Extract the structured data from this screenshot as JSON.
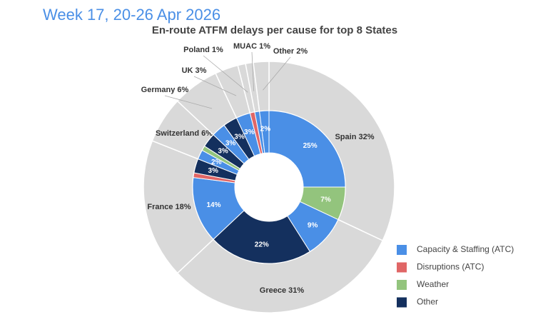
{
  "chart_data": {
    "type": "sunburst",
    "subtitle": "Week 17, 20-26 Apr 2026",
    "title": "En-route ATFM delays per cause for top 8 States",
    "categories": [
      "Spain",
      "Greece",
      "France",
      "Switzerland",
      "Germany",
      "UK",
      "Poland",
      "MUAC",
      "Other"
    ],
    "values": [
      32,
      31,
      18,
      6,
      6,
      3,
      1,
      1,
      2
    ],
    "value_labels": [
      "32%",
      "31%",
      "18%",
      "6%",
      "6%",
      "3%",
      "1%",
      "1%",
      "2%"
    ],
    "color": "#d9d9d9",
    "series": [
      {
        "name": "Capacity & Staffing (ATC)",
        "color": "#4a8fe6",
        "values": [
          25,
          9,
          14,
          2,
          3,
          3,
          null,
          1,
          2
        ],
        "value_labels": [
          "25%",
          "9%",
          "14%",
          "2%",
          "3%",
          "3%",
          null,
          null,
          "2%"
        ]
      },
      {
        "name": "Disruptions (ATC)",
        "color": "#e06666",
        "values": [
          null,
          null,
          1,
          null,
          null,
          null,
          1,
          null,
          null
        ]
      },
      {
        "name": "Weather",
        "color": "#93c47d",
        "values": [
          7,
          null,
          null,
          1,
          null,
          null,
          null,
          null,
          null
        ],
        "value_labels": [
          "7%",
          null,
          null,
          null,
          null,
          null,
          null,
          null,
          null
        ]
      },
      {
        "name": "Other",
        "color": "#14305e",
        "values": [
          null,
          22,
          3,
          3,
          3,
          null,
          null,
          null,
          null
        ],
        "value_labels": [
          null,
          "22%",
          "3%",
          "3%",
          "3%",
          null,
          null,
          null,
          null
        ]
      }
    ]
  }
}
